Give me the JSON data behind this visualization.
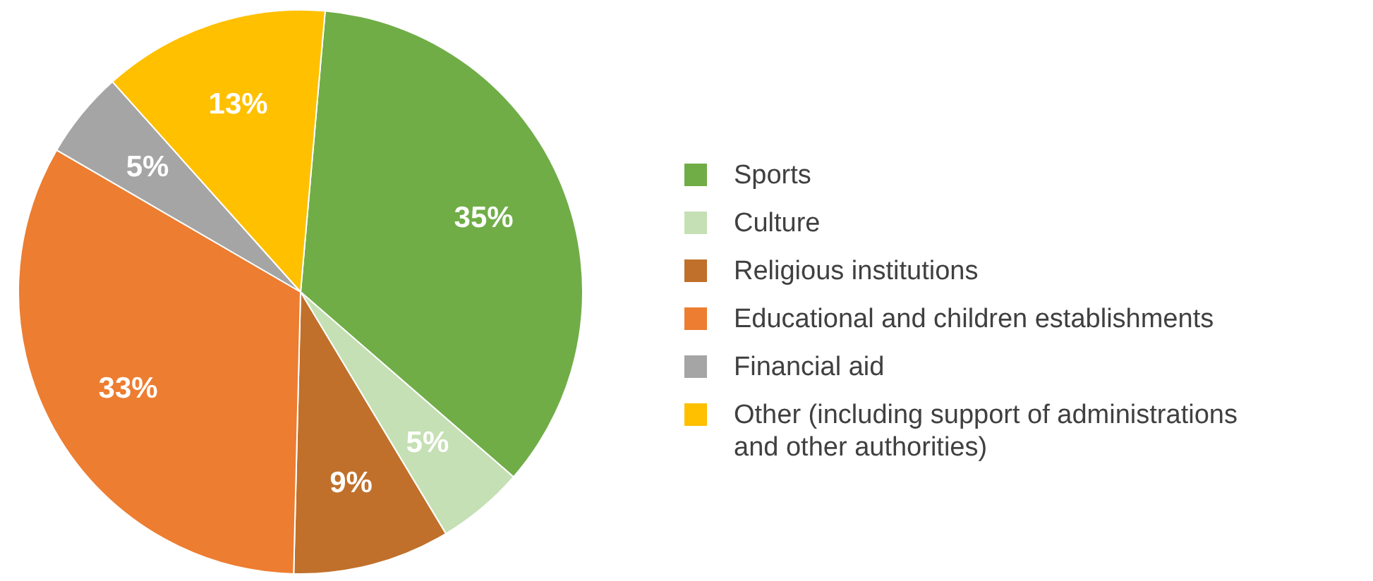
{
  "chart_data": {
    "type": "pie",
    "categories": [
      "Sports",
      "Culture",
      "Religious institutions",
      "Educational and children establishments",
      "Financial aid",
      "Other (including support of administrations and other authorities)"
    ],
    "values": [
      35,
      5,
      9,
      33,
      5,
      13
    ],
    "colors": [
      "#70ad47",
      "#c5e0b4",
      "#c0702a",
      "#ed7d31",
      "#a5a5a5",
      "#ffc000"
    ],
    "value_labels": [
      "35%",
      "5%",
      "9%",
      "33%",
      "5%",
      "13%"
    ],
    "legend": "right"
  }
}
